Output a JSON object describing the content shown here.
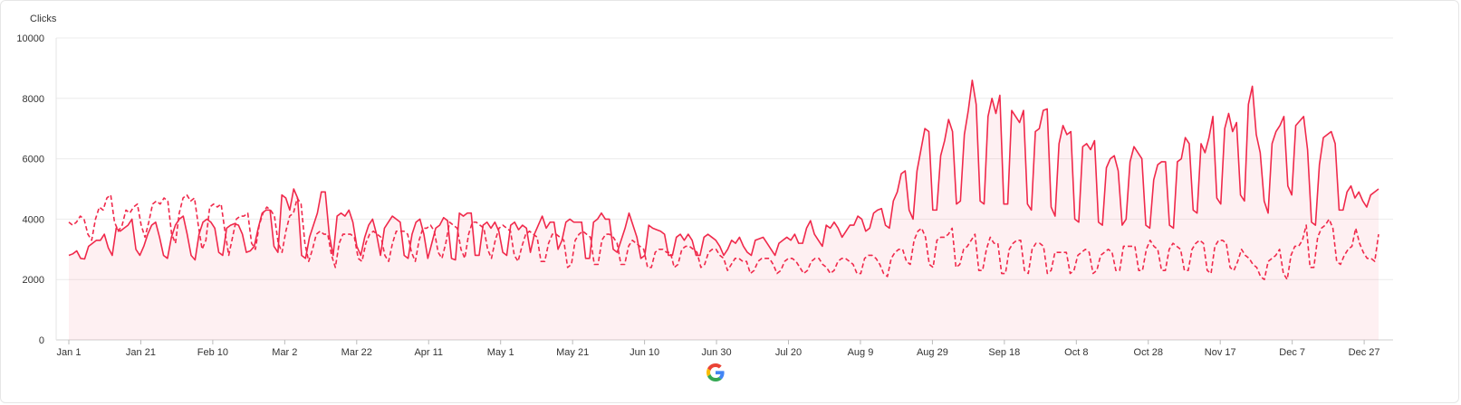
{
  "chart_data": {
    "type": "area",
    "ylabel": "Clicks",
    "ylim": [
      0,
      10000
    ],
    "y_ticks": [
      "0",
      "2000",
      "4000",
      "6000",
      "8000",
      "10000"
    ],
    "x_ticks": [
      "Jan 1",
      "Jan 21",
      "Feb 10",
      "Mar 2",
      "Mar 22",
      "Apr 11",
      "May 1",
      "May 21",
      "Jun 10",
      "Jun 30",
      "Jul 20",
      "Aug 9",
      "Aug 29",
      "Sep 18",
      "Oct 8",
      "Oct 28",
      "Nov 17",
      "Dec 7",
      "Dec 27"
    ],
    "grid": true,
    "legend": "none",
    "series": [
      {
        "style": "solid",
        "filled": true,
        "color": "#f0294b",
        "values": [
          2800,
          2850,
          2950,
          2700,
          2680,
          3100,
          3200,
          3300,
          3300,
          3500,
          3050,
          2800,
          3700,
          3600,
          3700,
          3800,
          4000,
          3000,
          2800,
          3100,
          3500,
          3800,
          3900,
          3400,
          2800,
          2700,
          3400,
          3800,
          4000,
          4100,
          3500,
          2800,
          2650,
          3500,
          3900,
          4000,
          3900,
          3700,
          2900,
          2800,
          3700,
          3800,
          3850,
          3800,
          3500,
          2900,
          2950,
          3100,
          3700,
          4200,
          4300,
          4300,
          3100,
          2900,
          4800,
          4700,
          4300,
          5000,
          4700,
          2800,
          2700,
          3400,
          3800,
          4200,
          4900,
          4900,
          3500,
          2800,
          4100,
          4200,
          4100,
          4300,
          3900,
          3100,
          2800,
          3400,
          3800,
          4000,
          3500,
          2800,
          3700,
          3900,
          4100,
          4000,
          3900,
          2800,
          2700,
          3500,
          3900,
          4000,
          3500,
          2700,
          3200,
          3700,
          3800,
          4050,
          3950,
          2700,
          2650,
          4200,
          4100,
          4200,
          4200,
          2800,
          2800,
          3800,
          3900,
          3700,
          3900,
          3600,
          2900,
          2800,
          3800,
          3900,
          3650,
          3800,
          3700,
          2900,
          3500,
          3800,
          4100,
          3700,
          3900,
          3900,
          3000,
          3300,
          3900,
          4000,
          3900,
          3900,
          3900,
          2700,
          2700,
          3900,
          4000,
          4200,
          4000,
          4000,
          3000,
          2900,
          3300,
          3700,
          4200,
          3800,
          3400,
          2700,
          2800,
          3800,
          3700,
          3650,
          3600,
          3500,
          2800,
          2800,
          3400,
          3500,
          3300,
          3500,
          3300,
          2800,
          2800,
          3400,
          3500,
          3400,
          3300,
          3100,
          2800,
          3000,
          3300,
          3200,
          3400,
          3100,
          2900,
          2800,
          3300,
          3350,
          3400,
          3200,
          3000,
          2800,
          3200,
          3300,
          3400,
          3300,
          3500,
          3200,
          3200,
          3700,
          3950,
          3500,
          3300,
          3100,
          3800,
          3700,
          3900,
          3700,
          3400,
          3600,
          3800,
          3800,
          4100,
          4000,
          3600,
          3700,
          4200,
          4300,
          4350,
          3800,
          3700,
          4600,
          4900,
          5500,
          5600,
          4300,
          4000,
          5600,
          6300,
          7000,
          6900,
          4300,
          4300,
          6100,
          6600,
          7300,
          6900,
          4500,
          4600,
          6800,
          7600,
          8600,
          7800,
          4600,
          4500,
          7400,
          8000,
          7500,
          8100,
          4500,
          4500,
          7600,
          7400,
          7200,
          7600,
          4500,
          4300,
          6900,
          7000,
          7600,
          7650,
          4400,
          4100,
          6500,
          7100,
          6800,
          6900,
          4000,
          3900,
          6400,
          6500,
          6300,
          6600,
          3900,
          3800,
          5700,
          6000,
          6100,
          5600,
          3800,
          4000,
          5900,
          6400,
          6200,
          6000,
          3800,
          3700,
          5300,
          5800,
          5900,
          5900,
          3800,
          3700,
          5900,
          6000,
          6700,
          6500,
          4300,
          4200,
          6500,
          6200,
          6700,
          7400,
          4700,
          4500,
          7000,
          7500,
          6900,
          7200,
          4800,
          4600,
          7800,
          8400,
          6800,
          6200,
          4600,
          4200,
          6500,
          6900,
          7100,
          7400,
          5100,
          4800,
          7100,
          7250,
          7400,
          6300,
          3900,
          3800,
          5800,
          6700,
          6800,
          6900,
          6500,
          4300,
          4300,
          4900,
          5100,
          4700,
          4900,
          4600,
          4400,
          4800,
          4900,
          5000
        ]
      },
      {
        "style": "dashed",
        "filled": false,
        "color": "#f0294b",
        "values": [
          3900,
          3800,
          3900,
          4100,
          4000,
          3500,
          3300,
          4000,
          4400,
          4300,
          4700,
          4800,
          3900,
          3600,
          3800,
          4300,
          4200,
          4400,
          4500,
          3800,
          3400,
          3900,
          4500,
          4600,
          4500,
          4700,
          4600,
          3500,
          3200,
          4200,
          4700,
          4800,
          4600,
          4700,
          3800,
          3000,
          3300,
          4400,
          4500,
          4400,
          4500,
          3600,
          2800,
          3400,
          4000,
          4100,
          4100,
          4200,
          3200,
          3000,
          3800,
          4200,
          4400,
          4300,
          4100,
          3200,
          2900,
          3600,
          4100,
          4200,
          4700,
          4500,
          3200,
          2600,
          3000,
          3500,
          3600,
          3500,
          3500,
          2800,
          2400,
          3200,
          3500,
          3500,
          3500,
          3400,
          2700,
          2600,
          3200,
          3500,
          3600,
          3500,
          3400,
          2800,
          2600,
          3200,
          3600,
          3600,
          3600,
          3500,
          2900,
          2600,
          3300,
          3700,
          3700,
          3800,
          3600,
          2900,
          2700,
          3200,
          3900,
          3800,
          3700,
          3000,
          2700,
          3500,
          3900,
          3900,
          3800,
          3700,
          3000,
          2700,
          3300,
          3700,
          3800,
          3700,
          3600,
          2800,
          2600,
          3100,
          3500,
          3600,
          3500,
          3400,
          2600,
          2600,
          3200,
          3500,
          3500,
          3400,
          3300,
          2400,
          2500,
          3300,
          3500,
          3600,
          3500,
          3400,
          2500,
          2500,
          3300,
          3500,
          3500,
          3400,
          3200,
          2500,
          2500,
          3100,
          3300,
          3200,
          3100,
          3000,
          2400,
          2400,
          2900,
          3000,
          3000,
          2900,
          2900,
          2400,
          2500,
          3000,
          3100,
          3100,
          3000,
          2900,
          2400,
          2500,
          2900,
          3000,
          3000,
          2800,
          2700,
          2300,
          2500,
          2700,
          2700,
          2600,
          2600,
          2200,
          2300,
          2600,
          2700,
          2700,
          2700,
          2500,
          2200,
          2300,
          2600,
          2700,
          2700,
          2600,
          2400,
          2200,
          2300,
          2600,
          2700,
          2700,
          2500,
          2400,
          2200,
          2300,
          2600,
          2700,
          2700,
          2600,
          2500,
          2200,
          2200,
          2700,
          2800,
          2800,
          2700,
          2500,
          2200,
          2100,
          2700,
          2900,
          3000,
          3000,
          2600,
          2500,
          3300,
          3600,
          3700,
          3400,
          2500,
          2400,
          3300,
          3400,
          3400,
          3500,
          3700,
          2400,
          2500,
          3000,
          3100,
          3300,
          3500,
          2300,
          2300,
          3000,
          3400,
          3200,
          3200,
          2200,
          2200,
          3000,
          3200,
          3300,
          3300,
          2300,
          2200,
          3000,
          3200,
          3200,
          3100,
          2200,
          2300,
          2900,
          2900,
          2900,
          2900,
          2200,
          2300,
          2800,
          2900,
          3000,
          2900,
          2200,
          2300,
          2800,
          2900,
          3000,
          2900,
          2300,
          2300,
          3100,
          3100,
          3100,
          3100,
          2300,
          2300,
          3000,
          3300,
          3100,
          3000,
          2300,
          2300,
          3000,
          3200,
          3100,
          3000,
          2300,
          2300,
          3000,
          3200,
          3300,
          3200,
          2300,
          2200,
          3100,
          3300,
          3300,
          3200,
          2400,
          2300,
          2600,
          3000,
          2800,
          2700,
          2500,
          2400,
          2100,
          2000,
          2600,
          2700,
          2800,
          3000,
          2200,
          2000,
          2800,
          3100,
          3100,
          3300,
          3800,
          2400,
          2400,
          3400,
          3700,
          3800,
          4000,
          3700,
          2600,
          2500,
          2800,
          3000,
          3100,
          3700,
          3200,
          2900,
          2700,
          2700,
          2600,
          3500
        ]
      }
    ]
  }
}
